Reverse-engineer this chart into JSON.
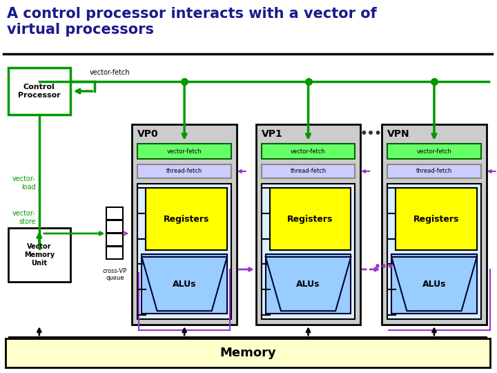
{
  "title": "A control processor interacts with a vector of\nvirtual processors",
  "title_color": "#1a1a8c",
  "title_fontsize": 15,
  "bg_color": "#ffffff",
  "vp_labels": [
    "VP0",
    "VP1",
    "VPN"
  ],
  "vp_bg": "#cccccc",
  "vp_border": "#000000",
  "vf_bar_color": "#66ff66",
  "vf_bar_border": "#006600",
  "tf_bar_color": "#ccccff",
  "tf_bar_border": "#888888",
  "reg_color": "#ffff00",
  "reg_border": "#000000",
  "alu_color": "#99ccff",
  "alu_border": "#000033",
  "inner_bg": "#ddeeff",
  "cp_box_color": "#ffffff",
  "cp_box_border": "#009900",
  "vmu_box_color": "#ffffff",
  "vmu_box_border": "#000000",
  "mem_color": "#ffffcc",
  "mem_border": "#000000",
  "green_line": "#009900",
  "purple_line": "#9933cc",
  "black_line": "#000000"
}
